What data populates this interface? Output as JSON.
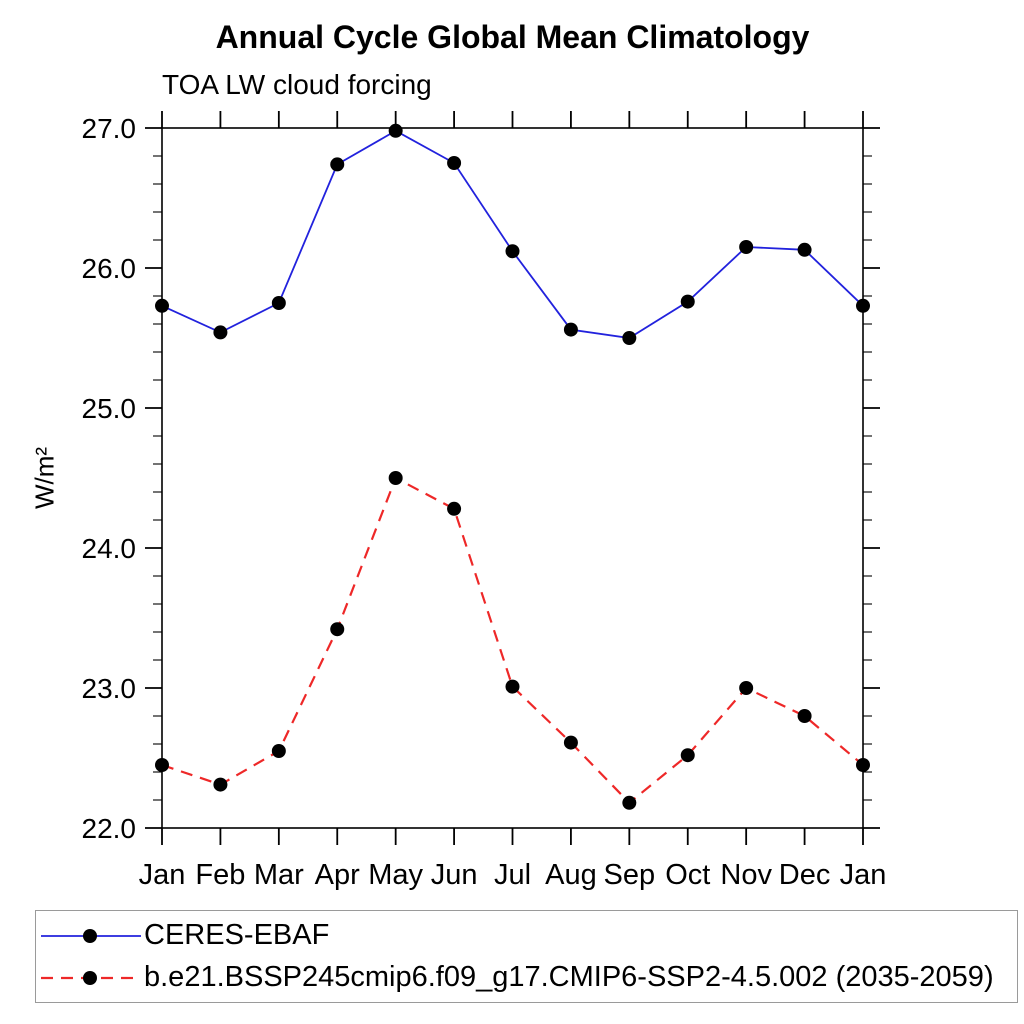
{
  "chart_data": {
    "type": "line",
    "title": "Annual Cycle Global Mean Climatology",
    "subtitle": "TOA LW cloud forcing",
    "ylabel": "W/m²",
    "x_categories": [
      "Jan",
      "Feb",
      "Mar",
      "Apr",
      "May",
      "Jun",
      "Jul",
      "Aug",
      "Sep",
      "Oct",
      "Nov",
      "Dec",
      "Jan"
    ],
    "ylim": [
      22.0,
      27.0
    ],
    "yticks": [
      22,
      23,
      24,
      25,
      26,
      27
    ],
    "ytick_labels": [
      "22.0",
      "23.0",
      "24.0",
      "25.0",
      "26.0",
      "27.0"
    ],
    "y_minor_step": 0.2,
    "grid": false,
    "legend_position": "bottom-outside",
    "background": "#ffffff",
    "axis_color": "#000000",
    "marker": {
      "shape": "circle",
      "color": "#000000"
    },
    "series": [
      {
        "name": "CERES-EBAF",
        "color": "#2222dd",
        "line_style": "solid",
        "values": [
          25.73,
          25.54,
          25.75,
          26.74,
          26.98,
          26.75,
          26.12,
          25.56,
          25.5,
          25.76,
          26.15,
          26.13,
          25.73
        ]
      },
      {
        "name": "b.e21.BSSP245cmip6.f09_g17.CMIP6-SSP2-4.5.002 (2035-2059)",
        "color": "#ee2828",
        "line_style": "dashed",
        "values": [
          22.45,
          22.31,
          22.55,
          23.42,
          24.5,
          24.28,
          23.01,
          22.61,
          22.18,
          22.52,
          23.0,
          22.8,
          22.45
        ]
      }
    ]
  }
}
